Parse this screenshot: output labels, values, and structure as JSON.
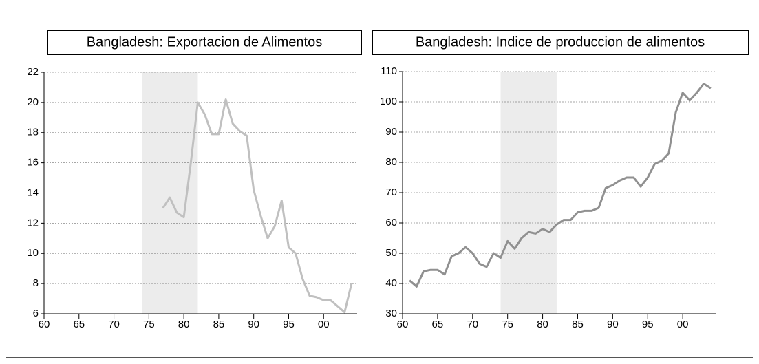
{
  "chart_data": [
    {
      "type": "line",
      "title": "Bangladesh: Exportacion de Alimentos",
      "x": [
        1977,
        1978,
        1979,
        1980,
        1981,
        1982,
        1983,
        1984,
        1985,
        1986,
        1987,
        1988,
        1989,
        1990,
        1991,
        1992,
        1993,
        1994,
        1995,
        1996,
        1997,
        1998,
        1999,
        2000,
        2001,
        2002,
        2003,
        2004
      ],
      "series": [
        {
          "name": null,
          "color": "#c0c0c0",
          "values": [
            13.0,
            13.7,
            12.7,
            12.4,
            16.0,
            20.0,
            19.2,
            17.9,
            17.9,
            20.2,
            18.6,
            18.1,
            17.8,
            14.2,
            12.5,
            11.0,
            11.8,
            13.5,
            10.4,
            10.0,
            8.3,
            7.2,
            7.1,
            6.9,
            6.9,
            6.5,
            6.1,
            8.0
          ]
        }
      ],
      "xlim": [
        1960,
        2004.8
      ],
      "xticks": [
        {
          "value": 1960,
          "label": "60"
        },
        {
          "value": 1965,
          "label": "65"
        },
        {
          "value": 1970,
          "label": "70"
        },
        {
          "value": 1975,
          "label": "75"
        },
        {
          "value": 1980,
          "label": "80"
        },
        {
          "value": 1985,
          "label": "85"
        },
        {
          "value": 1990,
          "label": "90"
        },
        {
          "value": 1995,
          "label": "95"
        },
        {
          "value": 2000,
          "label": "00"
        }
      ],
      "ylim": [
        6,
        22
      ],
      "yticks": [
        6,
        8,
        10,
        12,
        14,
        16,
        18,
        20,
        22
      ],
      "shade": [
        1974,
        1982
      ],
      "shade_color": "#ececec",
      "grid": true
    },
    {
      "type": "line",
      "title": "Bangladesh: Indice de produccion de alimentos",
      "x": [
        1961,
        1962,
        1963,
        1964,
        1965,
        1966,
        1967,
        1968,
        1969,
        1970,
        1971,
        1972,
        1973,
        1974,
        1975,
        1976,
        1977,
        1978,
        1979,
        1980,
        1981,
        1982,
        1983,
        1984,
        1985,
        1986,
        1987,
        1988,
        1989,
        1990,
        1991,
        1992,
        1993,
        1994,
        1995,
        1996,
        1997,
        1998,
        1999,
        2000,
        2001,
        2002,
        2003,
        2004
      ],
      "series": [
        {
          "name": null,
          "color": "#909090",
          "values": [
            41,
            39,
            44,
            44.5,
            44.5,
            43,
            49,
            50,
            52,
            50,
            46.5,
            45.5,
            50,
            48.5,
            54,
            51.5,
            55,
            57,
            56.5,
            58,
            57,
            59.5,
            61,
            61,
            63.5,
            64,
            64,
            65,
            71.5,
            72.5,
            74,
            75,
            75,
            72,
            75,
            79.5,
            80.5,
            83,
            96.5,
            103,
            100.5,
            103,
            106,
            104.5
          ]
        }
      ],
      "xlim": [
        1960,
        2004.8
      ],
      "xticks": [
        {
          "value": 1960,
          "label": "60"
        },
        {
          "value": 1965,
          "label": "65"
        },
        {
          "value": 1970,
          "label": "70"
        },
        {
          "value": 1975,
          "label": "75"
        },
        {
          "value": 1980,
          "label": "80"
        },
        {
          "value": 1985,
          "label": "85"
        },
        {
          "value": 1990,
          "label": "90"
        },
        {
          "value": 1995,
          "label": "95"
        },
        {
          "value": 2000,
          "label": "00"
        }
      ],
      "ylim": [
        30,
        110
      ],
      "yticks": [
        30,
        40,
        50,
        60,
        70,
        80,
        90,
        100,
        110
      ],
      "shade": [
        1974,
        1982
      ],
      "shade_color": "#ececec",
      "grid": true
    }
  ]
}
